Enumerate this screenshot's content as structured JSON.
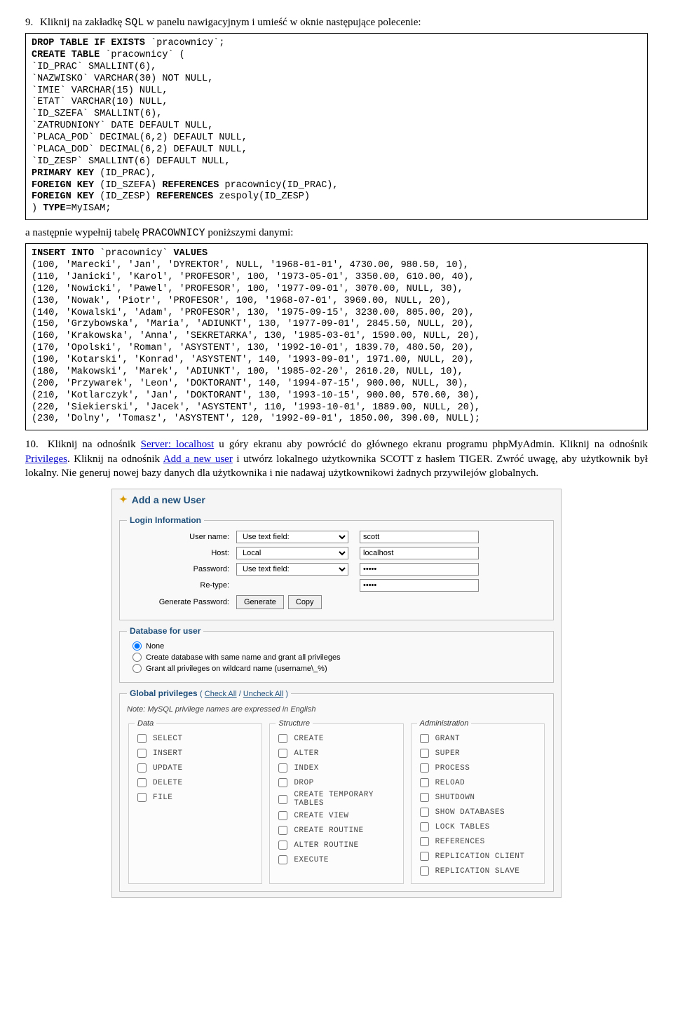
{
  "step9": {
    "num": "9.",
    "text_a": "Kliknij na zakładkę ",
    "sql": "SQL",
    "text_b": " w panelu nawigacyjnym i umieść w oknie następujące polecenie:"
  },
  "codebox1": {
    "l01a": "DROP TABLE IF EXISTS ",
    "l01b": "`pracownicy`;",
    "l02a": "CREATE TABLE ",
    "l02b": "`pracownicy` (",
    "l03": "`ID_PRAC` SMALLINT(6),",
    "l04": "`NAZWISKO` VARCHAR(30) NOT NULL,",
    "l05": "`IMIE` VARCHAR(15) NULL,",
    "l06": "`ETAT` VARCHAR(10) NULL,",
    "l07": "`ID_SZEFA` SMALLINT(6),",
    "l08": "`ZATRUDNIONY` DATE DEFAULT NULL,",
    "l09": "`PLACA_POD` DECIMAL(6,2) DEFAULT NULL,",
    "l10": "`PLACA_DOD` DECIMAL(6,2) DEFAULT NULL,",
    "l11": "`ID_ZESP` SMALLINT(6) DEFAULT NULL,",
    "l12a": "PRIMARY KEY ",
    "l12b": "(ID_PRAC),",
    "l13a": "FOREIGN KEY ",
    "l13b": "(ID_SZEFA) ",
    "l13c": "REFERENCES ",
    "l13d": "pracownicy(ID_PRAC),",
    "l14a": "FOREIGN KEY ",
    "l14b": "(ID_ZESP) ",
    "l14c": "REFERENCES ",
    "l14d": "zespoly(ID_ZESP)",
    "l15a": ") ",
    "l15b": "TYPE",
    "l15c": "=MyISAM;"
  },
  "middle": {
    "text_a": "a następnie wypełnij tabelę ",
    "mono": "PRACOWNICY",
    "text_b": " poniższymi danymi:"
  },
  "codebox2": {
    "l00a": "INSERT INTO ",
    "l00b": "`pracownicy` ",
    "l00c": "VALUES",
    "l1": "(100, 'Marecki', 'Jan', 'DYREKTOR', NULL, '1968-01-01', 4730.00, 980.50, 10),",
    "l2": "(110, 'Janicki', 'Karol', 'PROFESOR', 100, '1973-05-01', 3350.00, 610.00, 40),",
    "l3": "(120, 'Nowicki', 'Pawel', 'PROFESOR', 100, '1977-09-01', 3070.00, NULL, 30),",
    "l4": "(130, 'Nowak', 'Piotr', 'PROFESOR', 100, '1968-07-01', 3960.00, NULL, 20),",
    "l5": "(140, 'Kowalski', 'Adam', 'PROFESOR', 130, '1975-09-15', 3230.00, 805.00, 20),",
    "l6": "(150, 'Grzybowska', 'Maria', 'ADIUNKT', 130, '1977-09-01', 2845.50, NULL, 20),",
    "l7": "(160, 'Krakowska', 'Anna', 'SEKRETARKA', 130, '1985-03-01', 1590.00, NULL, 20),",
    "l8": "(170, 'Opolski', 'Roman', 'ASYSTENT', 130, '1992-10-01', 1839.70, 480.50, 20),",
    "l9": "(190, 'Kotarski', 'Konrad', 'ASYSTENT', 140, '1993-09-01', 1971.00, NULL, 20),",
    "l10": "(180, 'Makowski', 'Marek', 'ADIUNKT', 100, '1985-02-20', 2610.20, NULL, 10),",
    "l11": "(200, 'Przywarek', 'Leon', 'DOKTORANT', 140, '1994-07-15', 900.00, NULL, 30),",
    "l12": "(210, 'Kotlarczyk', 'Jan', 'DOKTORANT', 130, '1993-10-15', 900.00, 570.60, 30),",
    "l13": "(220, 'Siekierski', 'Jacek', 'ASYSTENT', 110, '1993-10-01', 1889.00, NULL, 20),",
    "l14": "(230, 'Dolny', 'Tomasz', 'ASYSTENT', 120, '1992-09-01', 1850.00, 390.00, NULL);"
  },
  "step10": {
    "num": "10.",
    "t1": "Kliknij na odnośnik ",
    "link1": "Server: localhost",
    "t2": " u góry ekranu aby powrócić do głównego ekranu programu phpMyAdmin. Kliknij na odnośnik ",
    "link2": "Privileges",
    "t3": ". Kliknij na odnośnik ",
    "link3": "Add a new user",
    "t4": " i utwórz lokalnego użytkownika SCOTT z hasłem TIGER. Zwróć uwagę, aby użytkownik był lokalny. Nie generuj nowej bazy danych dla użytkownika i nie nadawaj użytkownikowi żadnych przywilejów globalnych."
  },
  "panel": {
    "title": "Add a new User",
    "login": {
      "legend": "Login Information",
      "username_label": "User name:",
      "username_sel": "Use text field:",
      "username_val": "scott",
      "host_label": "Host:",
      "host_sel": "Local",
      "host_val": "localhost",
      "pw_label": "Password:",
      "pw_sel": "Use text field:",
      "pw_val": "•••••",
      "retype_label": "Re-type:",
      "retype_val": "•••••",
      "gen_label": "Generate Password:",
      "gen_btn": "Generate",
      "copy_btn": "Copy"
    },
    "dbuser": {
      "legend": "Database for user",
      "opt1": "None",
      "opt2": "Create database with same name and grant all privileges",
      "opt3": "Grant all privileges on wildcard name (username\\_%)"
    },
    "global": {
      "legend": "Global privileges",
      "checkall": "Check All",
      "uncheckall": "Uncheck All",
      "note": "Note: MySQL privilege names are expressed in English",
      "data_legend": "Data",
      "structure_legend": "Structure",
      "admin_legend": "Administration",
      "data": [
        "SELECT",
        "INSERT",
        "UPDATE",
        "DELETE",
        "FILE"
      ],
      "structure": [
        "CREATE",
        "ALTER",
        "INDEX",
        "DROP",
        "CREATE TEMPORARY TABLES",
        "CREATE VIEW",
        "CREATE ROUTINE",
        "ALTER ROUTINE",
        "EXECUTE"
      ],
      "admin": [
        "GRANT",
        "SUPER",
        "PROCESS",
        "RELOAD",
        "SHUTDOWN",
        "SHOW DATABASES",
        "LOCK TABLES",
        "REFERENCES",
        "REPLICATION CLIENT",
        "REPLICATION SLAVE"
      ]
    }
  }
}
